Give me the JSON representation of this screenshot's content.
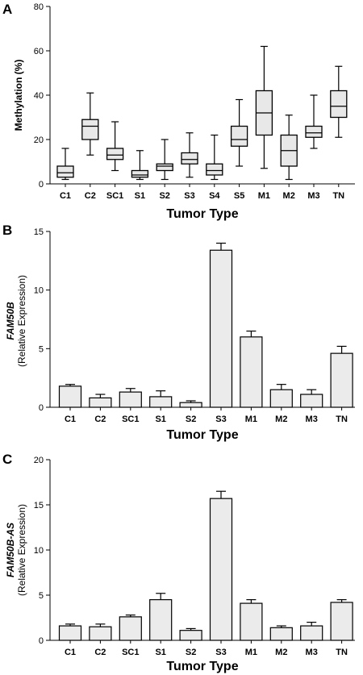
{
  "chart_data": [
    {
      "panel": "A",
      "type": "box",
      "xlabel": "Tumor Type",
      "ylabel": "Methylation (%)",
      "ylim": [
        0,
        80
      ],
      "yticks": [
        0,
        20,
        40,
        60,
        80
      ],
      "categories": [
        "C1",
        "C2",
        "SC1",
        "S1",
        "S2",
        "S3",
        "S4",
        "S5",
        "M1",
        "M2",
        "M3",
        "TN"
      ],
      "boxes": [
        {
          "min": 2,
          "q1": 3,
          "median": 5,
          "q3": 8,
          "max": 16
        },
        {
          "min": 13,
          "q1": 20,
          "median": 26,
          "q3": 29,
          "max": 41
        },
        {
          "min": 6,
          "q1": 11,
          "median": 13,
          "q3": 16,
          "max": 28
        },
        {
          "min": 2,
          "q1": 3,
          "median": 4,
          "q3": 6,
          "max": 15
        },
        {
          "min": 2,
          "q1": 6,
          "median": 8,
          "q3": 9,
          "max": 20
        },
        {
          "min": 3,
          "q1": 9,
          "median": 11,
          "q3": 14,
          "max": 23
        },
        {
          "min": 2,
          "q1": 4,
          "median": 6,
          "q3": 9,
          "max": 22
        },
        {
          "min": 8,
          "q1": 17,
          "median": 20,
          "q3": 26,
          "max": 38
        },
        {
          "min": 7,
          "q1": 22,
          "median": 32,
          "q3": 42,
          "max": 62
        },
        {
          "min": 2,
          "q1": 8,
          "median": 15,
          "q3": 22,
          "max": 31
        },
        {
          "min": 16,
          "q1": 21,
          "median": 23,
          "q3": 26,
          "max": 40
        },
        {
          "min": 21,
          "q1": 30,
          "median": 35,
          "q3": 42,
          "max": 53
        }
      ]
    },
    {
      "panel": "B",
      "type": "bar",
      "xlabel": "Tumor Type",
      "ylabel_gene": "FAM50B",
      "ylabel_sub": "(Relative Expression)",
      "ylim": [
        0,
        15
      ],
      "yticks": [
        0,
        5,
        10,
        15
      ],
      "categories": [
        "C1",
        "C2",
        "SC1",
        "S1",
        "S2",
        "S3",
        "M1",
        "M2",
        "M3",
        "TN"
      ],
      "values": [
        1.8,
        0.8,
        1.3,
        0.9,
        0.4,
        13.4,
        6.0,
        1.5,
        1.1,
        4.6
      ],
      "errors": [
        0.15,
        0.3,
        0.3,
        0.5,
        0.15,
        0.6,
        0.5,
        0.45,
        0.4,
        0.6
      ]
    },
    {
      "panel": "C",
      "type": "bar",
      "xlabel": "Tumor Type",
      "ylabel_gene": "FAM50B-AS",
      "ylabel_sub": "(Relative Expression)",
      "ylim": [
        0,
        20
      ],
      "yticks": [
        0,
        5,
        10,
        15,
        20
      ],
      "categories": [
        "C1",
        "C2",
        "SC1",
        "S1",
        "S2",
        "S3",
        "M1",
        "M2",
        "M3",
        "TN"
      ],
      "values": [
        1.6,
        1.5,
        2.6,
        4.5,
        1.1,
        15.7,
        4.1,
        1.4,
        1.6,
        4.2
      ],
      "errors": [
        0.2,
        0.3,
        0.2,
        0.7,
        0.2,
        0.8,
        0.4,
        0.2,
        0.4,
        0.3
      ]
    }
  ]
}
